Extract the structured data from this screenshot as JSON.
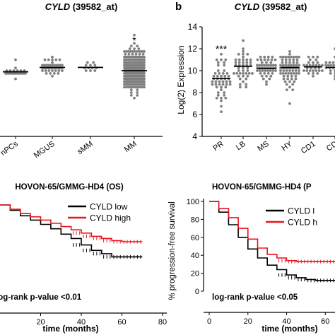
{
  "panel_labels": {
    "b": "b"
  },
  "colors": {
    "text": "#000000",
    "dots": "#7f7f7f",
    "median": "#000000",
    "cyld_low": "#000000",
    "cyld_high": "#e8141e"
  },
  "chart_data": [
    {
      "id": "panel_a",
      "type": "scatter",
      "title_gene": "CYLD",
      "title_probe": " (39582_at)",
      "categories": [
        "PCs",
        "MGUS",
        "sMM",
        "MM"
      ],
      "category_labels": [
        "nPCs",
        "MGUS",
        "sMM",
        "MM"
      ],
      "medians": [
        9.9,
        10.3,
        10.3,
        10.0
      ],
      "significance": [
        "",
        "",
        "",
        "*"
      ],
      "ylim": [
        4,
        14
      ],
      "point_counts": [
        22,
        44,
        12,
        300
      ],
      "point_sd": [
        0.3,
        0.35,
        0.3,
        1.0
      ]
    },
    {
      "id": "panel_b",
      "type": "scatter",
      "title_gene": "CYLD",
      "title_probe": " (39582_at)",
      "ylabel": "Log(2) Expression",
      "yticks": [
        4,
        6,
        8,
        10,
        12,
        14
      ],
      "ylim": [
        4,
        14
      ],
      "categories": [
        "PR",
        "LB",
        "MS",
        "HY",
        "CD1",
        "CD2"
      ],
      "category_labels": [
        "PR",
        "LB",
        "MS",
        "HY",
        "CD1",
        "CD"
      ],
      "medians": [
        9.3,
        10.4,
        10.2,
        10.3,
        10.35,
        10.3
      ],
      "significance": [
        "***",
        "",
        "",
        "",
        "",
        ""
      ],
      "point_counts": [
        50,
        45,
        50,
        70,
        30,
        30
      ],
      "point_sd": [
        0.9,
        0.8,
        0.6,
        0.8,
        0.5,
        0.5
      ]
    },
    {
      "id": "panel_c",
      "type": "line",
      "title": "HOVON-65/GMMG-HD4 (OS)",
      "xlabel": "time (months)",
      "xticks": [
        20,
        40,
        60,
        80
      ],
      "xlim": [
        0,
        80
      ],
      "ylim": [
        0,
        100
      ],
      "annotation": "log-rank p-value <0.01",
      "series": [
        {
          "name": "CYLD low",
          "x": [
            0,
            5,
            10,
            15,
            20,
            25,
            30,
            35,
            40,
            45,
            50,
            55,
            60,
            65,
            70
          ],
          "y": [
            100,
            95,
            90,
            86,
            82,
            78,
            73,
            69,
            63,
            58,
            55,
            52,
            52,
            52,
            52
          ]
        },
        {
          "name": "CYLD high",
          "x": [
            0,
            5,
            10,
            15,
            20,
            25,
            30,
            35,
            40,
            45,
            50,
            55,
            60,
            65,
            70
          ],
          "y": [
            100,
            96,
            92,
            89,
            86,
            83,
            80,
            77,
            74,
            71,
            69,
            67,
            66,
            66,
            66
          ]
        }
      ]
    },
    {
      "id": "panel_d",
      "type": "line",
      "title": "HOVON-65/GMMG-HD4 (P",
      "ylabel": "% progression-free survival",
      "xlabel": "time (months)",
      "yticks": [
        0,
        20,
        40,
        60,
        80,
        100
      ],
      "xticks": [
        0,
        20,
        40,
        60
      ],
      "xlim": [
        0,
        65
      ],
      "ylim": [
        0,
        100
      ],
      "annotation": "log-rank p-value <0.05",
      "series": [
        {
          "name": "CYLD l",
          "x": [
            0,
            5,
            10,
            15,
            20,
            25,
            30,
            35,
            40,
            45,
            50,
            55,
            60,
            65
          ],
          "y": [
            100,
            88,
            74,
            60,
            47,
            37,
            29,
            24,
            18,
            15,
            13,
            12,
            12,
            12
          ]
        },
        {
          "name": "CYLD h",
          "x": [
            0,
            5,
            10,
            15,
            20,
            25,
            30,
            35,
            40,
            45,
            50,
            55,
            60,
            65
          ],
          "y": [
            100,
            92,
            82,
            70,
            58,
            48,
            41,
            37,
            34,
            33,
            33,
            33,
            33,
            33
          ]
        }
      ]
    }
  ]
}
